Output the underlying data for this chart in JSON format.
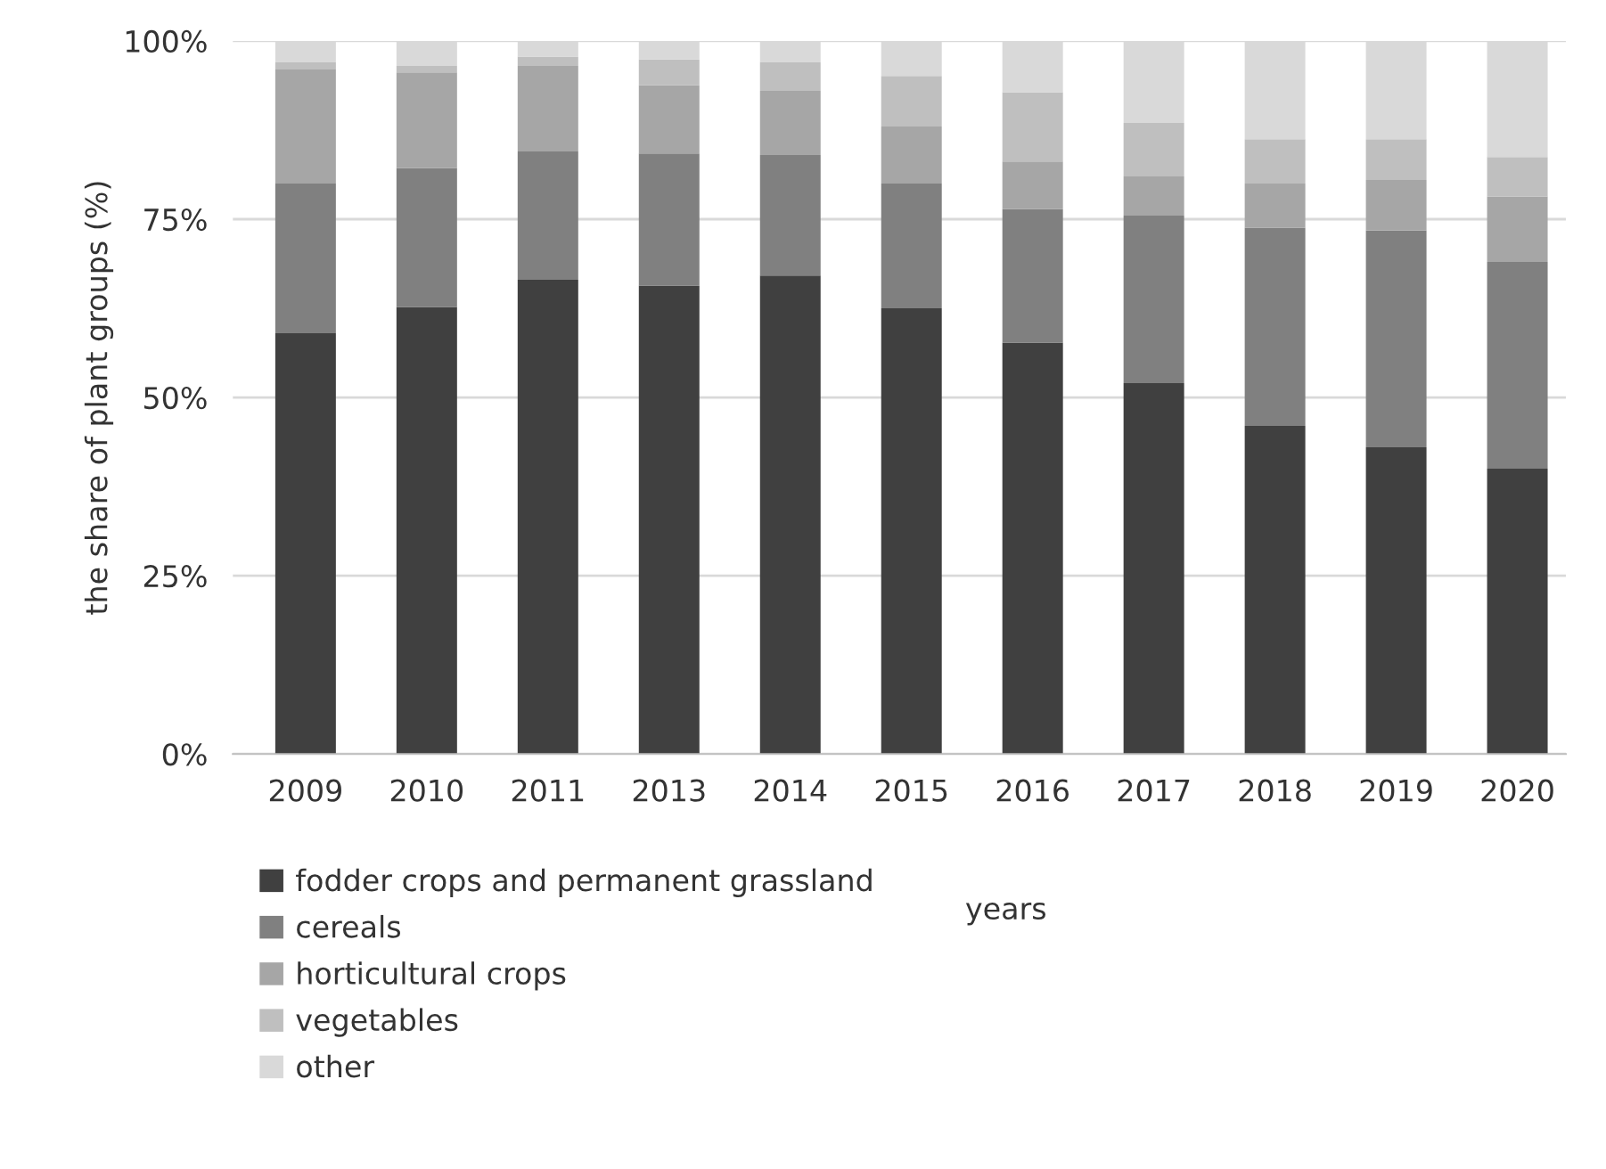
{
  "chart_data": {
    "type": "bar",
    "stacked": true,
    "xlabel": "years",
    "ylabel": "the share of plant groups (%)",
    "categories": [
      "2009",
      "2010",
      "2011",
      "2013",
      "2014",
      "2015",
      "2016",
      "2017",
      "2018",
      "2019",
      "2020"
    ],
    "series": [
      {
        "name": "fodder crops and permanent grassland",
        "color": "#404040",
        "values": [
          59,
          62.7,
          66.5,
          65.7,
          67.1,
          62.5,
          57.7,
          52,
          46,
          43,
          40
        ]
      },
      {
        "name": "cereals",
        "color": "#808080",
        "values": [
          21,
          19.5,
          18,
          18.5,
          16.9,
          17.5,
          18.7,
          23.5,
          27.8,
          30.4,
          29
        ]
      },
      {
        "name": "horticultural crops",
        "color": "#a6a6a6",
        "values": [
          16,
          13.4,
          12,
          9.6,
          9,
          8,
          6.7,
          5.5,
          6.2,
          7.1,
          9.2
        ]
      },
      {
        "name": "vegetables",
        "color": "#bfbfbf",
        "values": [
          1,
          0.9,
          1.3,
          3.6,
          4,
          7.1,
          9.7,
          7.5,
          6.2,
          5.7,
          5.5
        ]
      },
      {
        "name": "other",
        "color": "#d9d9d9",
        "values": [
          3,
          3.5,
          2.2,
          2.6,
          3,
          4.9,
          7.2,
          11.5,
          13.8,
          13.8,
          16.3
        ]
      }
    ],
    "ylim": [
      0,
      100
    ],
    "yticks": [
      {
        "value": 0,
        "label": "0%"
      },
      {
        "value": 25,
        "label": "25%"
      },
      {
        "value": 50,
        "label": "50%"
      },
      {
        "value": 75,
        "label": "75%"
      },
      {
        "value": 100,
        "label": "100%"
      }
    ],
    "grid": "y",
    "legend": "bottom"
  }
}
